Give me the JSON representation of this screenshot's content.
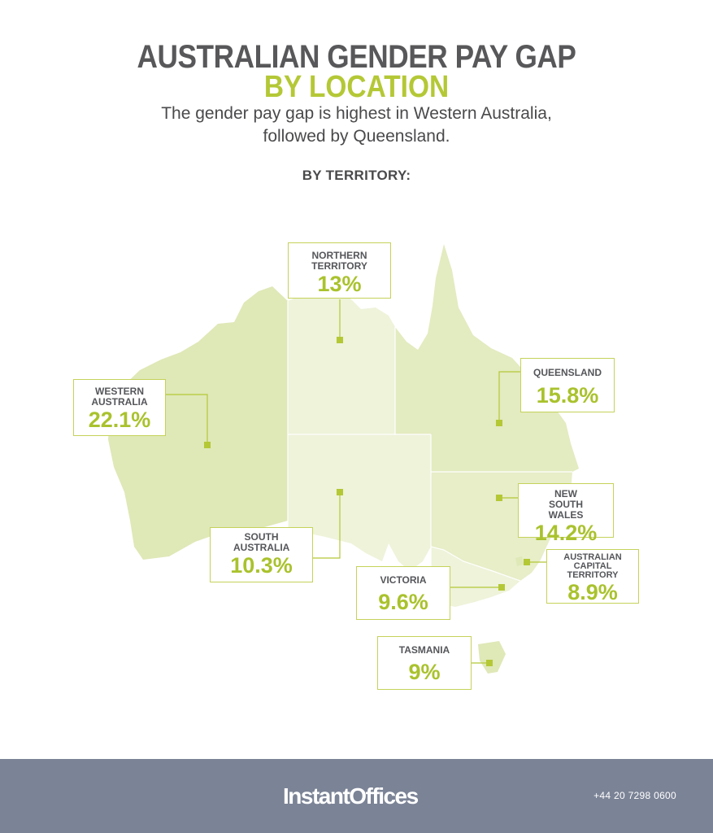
{
  "header": {
    "title_line1": "AUSTRALIAN GENDER PAY GAP",
    "title_line2": "BY LOCATION",
    "subtitle_line1": "The gender pay gap is highest in Western Australia,",
    "subtitle_line2": "followed by Queensland.",
    "section_label": "BY TERRITORY:"
  },
  "regions": {
    "northern_territory": {
      "name": "NORTHERN TERRITORY",
      "value": "13%"
    },
    "queensland": {
      "name": "QUEENSLAND",
      "value": "15.8%"
    },
    "western_australia": {
      "name": "WESTERN AUSTRALIA",
      "value": "22.1%"
    },
    "south_australia": {
      "name": "SOUTH AUSTRALIA",
      "value": "10.3%"
    },
    "new_south_wales": {
      "name": "NEW SOUTH WALES",
      "value": "14.2%"
    },
    "australian_capital_territory": {
      "name": "AUSTRALIAN CAPITAL TERRITORY",
      "value": "8.9%"
    },
    "victoria": {
      "name": "VICTORIA",
      "value": "9.6%"
    },
    "tasmania": {
      "name": "TASMANIA",
      "value": "9%"
    }
  },
  "colors": {
    "accent": "#b4c836",
    "title": "#58585a",
    "footer": "#7b8396",
    "map_dark": "#dfe8b7",
    "map_mid": "#e7eec8",
    "map_light": "#eef3da"
  },
  "footer": {
    "brand": "InstantOffices",
    "phone": "+44 20 7298 0600"
  }
}
